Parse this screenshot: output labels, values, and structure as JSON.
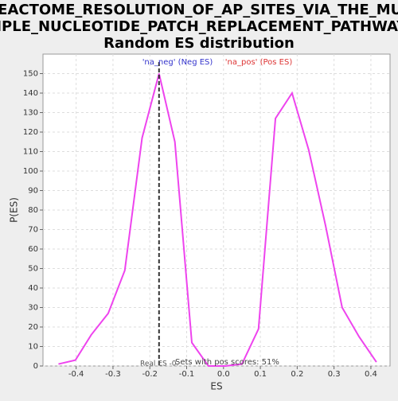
{
  "chart_data": {
    "type": "line",
    "title": [
      "REACTOME_RESOLUTION_OF_AP_SITES_VIA_THE_MUL",
      "TIPLE_NUCLEOTIDE_PATCH_REPLACEMENT_PATHWAY:",
      "Random ES distribution"
    ],
    "x_label": "ES",
    "y_label": "P(ES)",
    "x": [
      -0.448,
      -0.402,
      -0.359,
      -0.313,
      -0.268,
      -0.221,
      -0.175,
      -0.132,
      -0.086,
      -0.041,
      0.005,
      0.05,
      0.095,
      0.141,
      0.186,
      0.231,
      0.277,
      0.322,
      0.368,
      0.415
    ],
    "series": [
      {
        "name": "random-es",
        "color": "#ee44ee",
        "values": [
          1,
          3,
          16,
          27,
          49,
          117,
          150,
          115,
          12,
          0,
          0,
          1,
          19,
          127,
          140,
          111,
          72,
          30,
          15,
          2
        ]
      }
    ],
    "xlim": [
      -0.49,
      0.452
    ],
    "ylim": [
      0,
      160
    ],
    "xticks": [
      -0.4,
      -0.3,
      -0.2,
      -0.1,
      {
        "value": 0,
        "label": "0.0"
      },
      0.1,
      0.2,
      0.3,
      0.4
    ],
    "yticks": [
      0,
      10,
      20,
      30,
      40,
      50,
      60,
      70,
      80,
      90,
      100,
      110,
      120,
      130,
      140,
      150
    ],
    "grid": true,
    "real_es": -0.175,
    "annotations": {
      "neg": "'na_neg' (Neg ES)",
      "neg_color": "#3333cc",
      "pos": "'na_pos' (Pos ES)",
      "pos_color": "#dd3333",
      "real": "Real ES -0.",
      "pos_scores": "Sets with pos scores: 51%"
    }
  }
}
